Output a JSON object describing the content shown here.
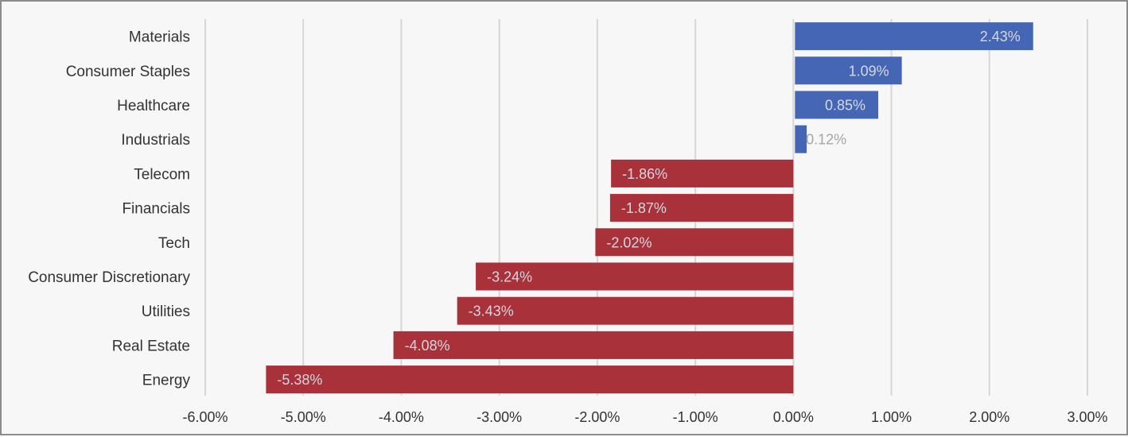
{
  "chart_data": {
    "type": "bar",
    "orientation": "horizontal",
    "categories": [
      "Materials",
      "Consumer Staples",
      "Healthcare",
      "Industrials",
      "Telecom",
      "Financials",
      "Tech",
      "Consumer Discretionary",
      "Utilities",
      "Real Estate",
      "Energy"
    ],
    "values": [
      2.43,
      1.09,
      0.85,
      0.12,
      -1.86,
      -1.87,
      -2.02,
      -3.24,
      -3.43,
      -4.08,
      -5.38
    ],
    "data_labels": [
      "2.43%",
      "1.09%",
      "0.85%",
      "0.12%",
      "-1.86%",
      "-1.87%",
      "-2.02%",
      "-3.24%",
      "-3.43%",
      "-4.08%",
      "-5.38%"
    ],
    "xlim": [
      -6,
      3
    ],
    "x_ticks": [
      -6,
      -5,
      -4,
      -3,
      -2,
      -1,
      0,
      1,
      2,
      3
    ],
    "x_tick_labels": [
      "-6.00%",
      "-5.00%",
      "-4.00%",
      "-3.00%",
      "-2.00%",
      "-1.00%",
      "0.00%",
      "1.00%",
      "2.00%",
      "3.00%"
    ],
    "title": "",
    "xlabel": "",
    "ylabel": "",
    "grid": "vertical",
    "legend": "none",
    "colors": {
      "positive": "#4566b5",
      "negative": "#a8313a",
      "label_on_bar": "#d7d7e0",
      "label_outside": "#a6a6a6"
    }
  }
}
